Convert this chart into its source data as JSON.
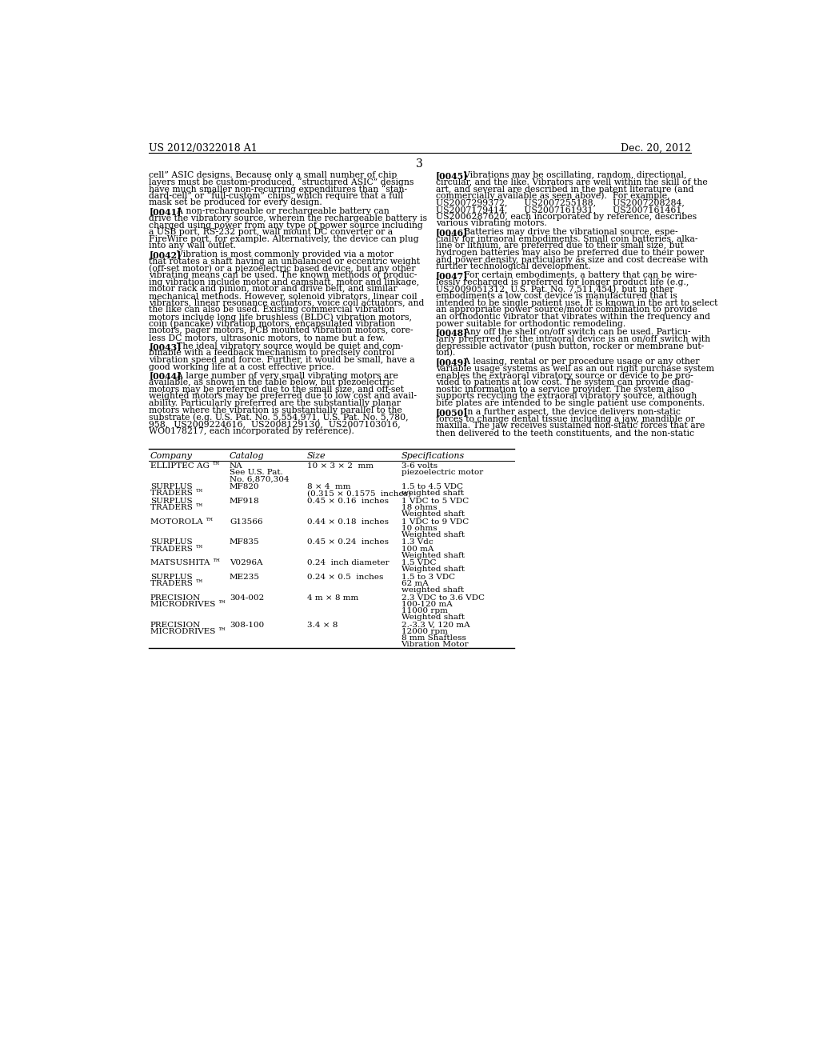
{
  "bg_color": "#ffffff",
  "header_left": "US 2012/0322018 A1",
  "header_right": "Dec. 20, 2012",
  "page_num": "3",
  "left_col_paragraphs": [
    {
      "tag": "",
      "lines": [
        "cell” ASIC designs. Because only a small number of chip",
        "layers must be custom-produced, “structured ASIC” designs",
        "have much smaller non-recurring expenditures than “stan-",
        "dard-cell” or “full-custom” chips, which require that a full",
        "mask set be produced for every design."
      ]
    },
    {
      "tag": "[0041]",
      "lines": [
        "    A non-rechargeable or rechargeable battery can",
        "drive the vibratory source, wherein the rechargeable battery is",
        "charged using power from any type of power source including",
        "a USB port, RS-232 port, wall mount DC converter or a",
        "FireWire port, for example. Alternatively, the device can plug",
        "into any wall outlet."
      ]
    },
    {
      "tag": "[0042]",
      "lines": [
        "    Vibration is most commonly provided via a motor",
        "that rotates a shaft having an unbalanced or eccentric weight",
        "(off-set motor) or a piezoelectric based device, but any other",
        "vibrating means can be used. The known methods of produc-",
        "ing vibration include motor and camshaft, motor and linkage,",
        "motor rack and pinion, motor and drive belt, and similar",
        "mechanical methods. However, solenoid vibrators, linear coil",
        "vibrators, linear resonance actuators, voice coil actuators, and",
        "the like can also be used. Existing commercial vibration",
        "motors include long life brushless (BLDC) vibration motors,",
        "coin (pancake) vibration motors, encapsulated vibration",
        "motors, pager motors, PCB mounted vibration motors, core-",
        "less DC motors, ultrasonic motors, to name but a few."
      ]
    },
    {
      "tag": "[0043]",
      "lines": [
        "    The ideal vibratory source would be quiet and com-",
        "binable with a feedback mechanism to precisely control",
        "vibration speed and force. Further, it would be small, have a",
        "good working life at a cost effective price."
      ]
    },
    {
      "tag": "[0044]",
      "lines": [
        "    A large number of very small vibrating motors are",
        "available, as shown in the table below, but piezoelectric",
        "motors may be preferred due to the small size, and off-set",
        "weighted motors may be preferred due to low cost and avail-",
        "ability. Particularly preferred are the substantially planar",
        "motors where the vibration is substantially parallel to the",
        "substrate (e.g. U.S. Pat. No. 5,554,971, U.S. Pat. No. 5,780,",
        "958,  US2009224616,  US2008129130,  US2007103016,",
        "WO0178217, each incorporated by reference)."
      ]
    }
  ],
  "right_col_paragraphs": [
    {
      "tag": "[0045]",
      "lines": [
        "    Vibrations may be oscillating, random, directional,",
        "circular, and the like. Vibrators are well within the skill of the",
        "art, and several are described in the patent literature (and",
        "commercially available as seen above).  For example,",
        "US2007299372,      US2007255188,      US2007208284,",
        "US2007179414,      US2007161931,      US2007161461,",
        "US2006287620, each incorporated by reference, describes",
        "various vibrating motors."
      ]
    },
    {
      "tag": "[0046]",
      "lines": [
        "    Batteries may drive the vibrational source, espe-",
        "cially for intraoral embodiments. Small coin batteries, alka-",
        "line or lithium, are preferred due to their small size, but",
        "hydrogen batteries may also be preferred due to their power",
        "and power density, particularly as size and cost decrease with",
        "further technological development."
      ]
    },
    {
      "tag": "[0047]",
      "lines": [
        "    For certain embodiments, a battery that can be wire-",
        "lessly recharged is preferred for longer product life (e.g.,",
        "US2009051312, U.S. Pat. No. 7,511,454), but in other",
        "embodiments a low cost device is manufactured that is",
        "intended to be single patient use. It is known in the art to select",
        "an appropriate power source/motor combination to provide",
        "an orthodontic vibrator that vibrates within the frequency and",
        "power suitable for orthodontic remodeling."
      ]
    },
    {
      "tag": "[0048]",
      "lines": [
        "    Any off the shelf on/off switch can be used. Particu-",
        "larly preferred for the intraoral device is an on/off switch with",
        "depressible activator (push button, rocker or membrane but-",
        "ton)."
      ]
    },
    {
      "tag": "[0049]",
      "lines": [
        "    A leasing, rental or per procedure usage or any other",
        "variable usage systems as well as an out right purchase system",
        "enables the extraoral vibratory source or device to be pro-",
        "vided to patients at low cost. The system can provide diag-",
        "nostic information to a service provider. The system also",
        "supports recycling the extraoral vibratory source, although",
        "bite plates are intended to be single patient use components."
      ]
    },
    {
      "tag": "[0050]",
      "lines": [
        "    In a further aspect, the device delivers non-static",
        "forces to change dental tissue including a jaw, mandible or",
        "maxilla. The jaw receives sustained non-static forces that are",
        "then delivered to the teeth constituents, and the non-static"
      ]
    }
  ],
  "table": {
    "headers": [
      "Company",
      "Catalog",
      "Size",
      "Specifications"
    ],
    "rows": [
      {
        "company": [
          "ELLIPTEC AG ™"
        ],
        "catalog": [
          "NA",
          "See U.S. Pat.",
          "No. 6,870,304"
        ],
        "size": [
          "10 × 3 × 2  mm"
        ],
        "specs": [
          "3-6 volts",
          "piezoelectric motor"
        ]
      },
      {
        "company": [
          "SURPLUS",
          "TRADERS ™"
        ],
        "catalog": [
          "MF820"
        ],
        "size": [
          "8 × 4  mm",
          "(0.315 × 0.1575  inches)"
        ],
        "specs": [
          "1.5 to 4.5 VDC",
          "weighted shaft"
        ]
      },
      {
        "company": [
          "SURPLUS",
          "TRADERS ™"
        ],
        "catalog": [
          "MF918"
        ],
        "size": [
          "0.45 × 0.16  inches"
        ],
        "specs": [
          "1 VDC to 5 VDC",
          "18 ohms",
          "Weighted shaft"
        ]
      },
      {
        "company": [
          "MOTOROLA ™"
        ],
        "catalog": [
          "G13566"
        ],
        "size": [
          "0.44 × 0.18  inches"
        ],
        "specs": [
          "1 VDC to 9 VDC",
          "10 ohms",
          "Weighted shaft"
        ]
      },
      {
        "company": [
          "SURPLUS",
          "TRADERS ™"
        ],
        "catalog": [
          "MF835"
        ],
        "size": [
          "0.45 × 0.24  inches"
        ],
        "specs": [
          "1.3 Vdc",
          "100 mA",
          "Weighted shaft"
        ]
      },
      {
        "company": [
          "MATSUSHITA ™"
        ],
        "catalog": [
          "V0296A"
        ],
        "size": [
          "0.24  inch diameter"
        ],
        "specs": [
          "1.5 VDC",
          "Weighted shaft"
        ]
      },
      {
        "company": [
          "SURPLUS",
          "TRADERS ™"
        ],
        "catalog": [
          "ME235"
        ],
        "size": [
          "0.24 × 0.5  inches"
        ],
        "specs": [
          "1.5 to 3 VDC",
          "62 mA",
          "weighted shaft"
        ]
      },
      {
        "company": [
          "PRECISION",
          "MICRODRIVES ™"
        ],
        "catalog": [
          "304-002"
        ],
        "size": [
          "4 m × 8 mm"
        ],
        "specs": [
          "2.3 VDC to 3.6 VDC",
          "100-120 mA",
          "11000 rpm",
          "Weighted shaft"
        ]
      },
      {
        "company": [
          "PRECISION",
          "MICRODRIVES ™"
        ],
        "catalog": [
          "308-100"
        ],
        "size": [
          "3.4 × 8"
        ],
        "specs": [
          "2.-3.3 V, 120 mA",
          "12000 rpm",
          "8 mm Shaftless",
          "Vibration Motor"
        ]
      }
    ]
  }
}
